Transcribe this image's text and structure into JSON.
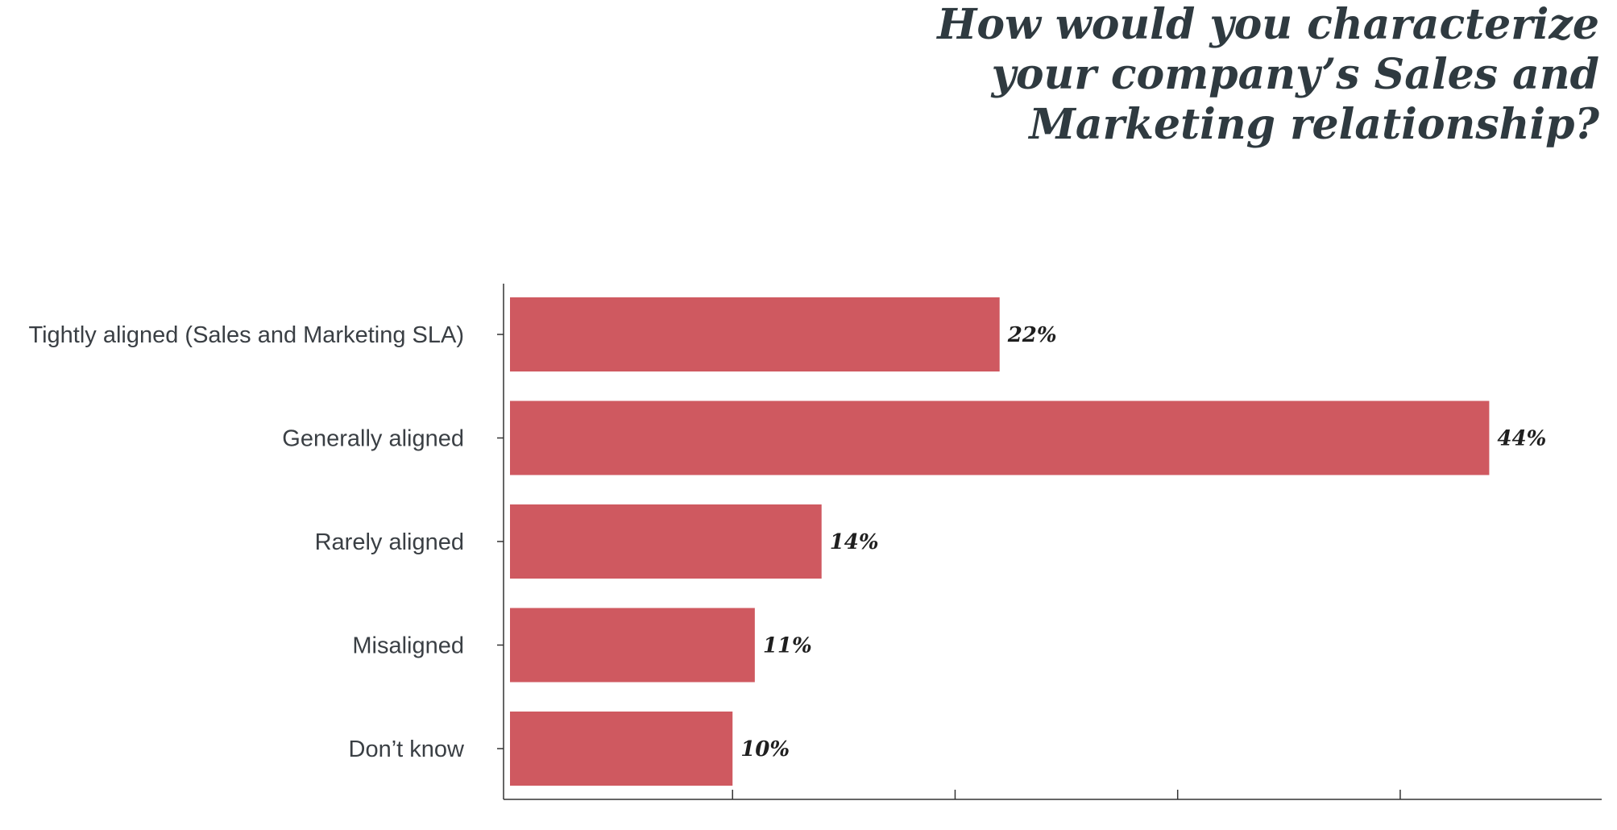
{
  "chart_data": {
    "type": "bar",
    "orientation": "horizontal",
    "title": "How would you characterize\nyour company’s Sales and\nMarketing relationship?",
    "categories": [
      "Tightly aligned (Sales and Marketing SLA)",
      "Generally aligned",
      "Rarely aligned",
      "Misaligned",
      "Don’t know"
    ],
    "values": [
      22,
      44,
      14,
      11,
      10
    ],
    "value_labels": [
      "22%",
      "44%",
      "14%",
      "11%",
      "10%"
    ],
    "xlim": [
      0,
      46.7
    ],
    "x_ticks": [
      10,
      20,
      30,
      40
    ],
    "x_tick_labels_shown": false,
    "grid": false,
    "legend": "none",
    "bar_color": "#cf5960",
    "axis_color": "#333333"
  }
}
